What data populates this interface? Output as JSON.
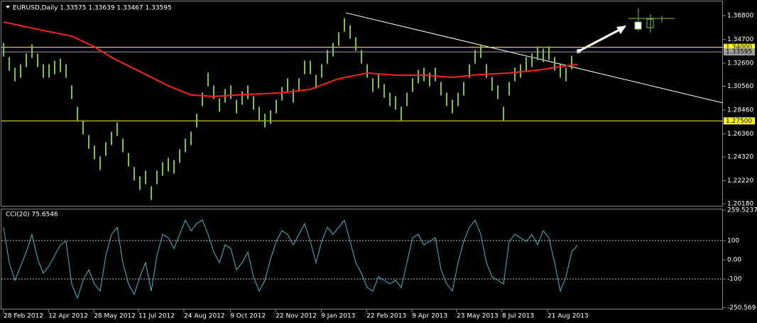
{
  "chart_data": [
    {
      "type": "ohlc",
      "title": "EURUSD,Daily 1.33575 1.33639 1.33467 1.33595",
      "color": "#79c04f",
      "xlim": [
        -0.625,
        126.625
      ],
      "ylim": [
        1.1999,
        1.3787
      ],
      "yticks": [
        {
          "value": 1.368,
          "label": "1.36800"
        },
        {
          "value": 1.347,
          "label": "1.34700"
        },
        {
          "value": 1.326,
          "label": "1.32600"
        },
        {
          "value": 1.3056,
          "label": "1.30560"
        },
        {
          "value": 1.2846,
          "label": "1.28460"
        },
        {
          "value": 1.2636,
          "label": "1.26360"
        },
        {
          "value": 1.2432,
          "label": "1.24320"
        },
        {
          "value": 1.2222,
          "label": "1.22220"
        },
        {
          "value": 1.2018,
          "label": "1.20180"
        }
      ],
      "high": [
        1.3439,
        1.3314,
        1.322,
        1.3251,
        1.3345,
        1.3426,
        1.3345,
        1.3251,
        1.3251,
        1.3282,
        1.3301,
        1.3251,
        1.3063,
        1.2875,
        1.2749,
        1.2624,
        1.253,
        1.2436,
        1.2561,
        1.2655,
        1.2737,
        1.2593,
        1.2467,
        1.2342,
        1.226,
        1.231,
        1.2172,
        1.231,
        1.2386,
        1.2423,
        1.2404,
        1.2499,
        1.2593,
        1.2655,
        1.2812,
        1.3,
        1.3176,
        1.3063,
        1.295,
        1.3031,
        1.3063,
        1.2937,
        1.3013,
        1.3063,
        1.2969,
        1.2875,
        1.2812,
        1.2843,
        1.2937,
        1.305,
        1.3126,
        1.3031,
        1.3126,
        1.3282,
        1.3282,
        1.3157,
        1.3251,
        1.3376,
        1.3439,
        1.3533,
        1.3658,
        1.3596,
        1.3489,
        1.3376,
        1.3251,
        1.3126,
        1.3157,
        1.3075,
        1.3,
        1.2969,
        1.2875,
        1.3,
        1.3126,
        1.3201,
        1.322,
        1.3176,
        1.322,
        1.3094,
        1.3,
        1.2937,
        1.3,
        1.3094,
        1.3251,
        1.3376,
        1.3426,
        1.3251,
        1.3138,
        1.3063,
        1.2875,
        1.3094,
        1.322,
        1.3251,
        1.3314,
        1.3345,
        1.3408,
        1.3389,
        1.3408,
        1.3314,
        1.3251,
        1.322,
        1.3326,
        1.3364
      ],
      "low": [
        1.3319,
        1.3194,
        1.31,
        1.3131,
        1.3225,
        1.3306,
        1.3225,
        1.3131,
        1.3131,
        1.3162,
        1.3181,
        1.3131,
        1.2943,
        1.2755,
        1.2629,
        1.2504,
        1.241,
        1.2316,
        1.2441,
        1.2535,
        1.2617,
        1.2473,
        1.2347,
        1.2222,
        1.214,
        1.219,
        1.2052,
        1.219,
        1.2266,
        1.2303,
        1.2284,
        1.2379,
        1.2473,
        1.2535,
        1.2692,
        1.288,
        1.3056,
        1.2943,
        1.283,
        1.2911,
        1.2943,
        1.2817,
        1.2893,
        1.2943,
        1.2849,
        1.2755,
        1.2692,
        1.2723,
        1.2817,
        1.293,
        1.3006,
        1.2911,
        1.3006,
        1.3162,
        1.3162,
        1.3037,
        1.3131,
        1.3256,
        1.3319,
        1.3413,
        1.3538,
        1.3476,
        1.3369,
        1.3256,
        1.3131,
        1.3006,
        1.3037,
        1.2955,
        1.288,
        1.2849,
        1.2755,
        1.288,
        1.3006,
        1.3081,
        1.31,
        1.3056,
        1.31,
        1.2974,
        1.288,
        1.2817,
        1.288,
        1.2974,
        1.3131,
        1.3256,
        1.3306,
        1.3131,
        1.3018,
        1.2943,
        1.2755,
        1.2974,
        1.31,
        1.3131,
        1.3194,
        1.3225,
        1.3288,
        1.3269,
        1.3288,
        1.3194,
        1.3131,
        1.31,
        1.3206,
        1.3347
      ],
      "ma": {
        "color": "#ff2020",
        "x": [
          0,
          7,
          12,
          16,
          19,
          24,
          29,
          33,
          37,
          43,
          49,
          54,
          59,
          64,
          69,
          74,
          79,
          84,
          89,
          94,
          98,
          101
        ],
        "values": [
          1.3624,
          1.3549,
          1.3499,
          1.3405,
          1.3311,
          1.3186,
          1.306,
          1.2979,
          1.2966,
          1.2985,
          1.2997,
          1.3029,
          1.3123,
          1.3173,
          1.3154,
          1.3154,
          1.3135,
          1.316,
          1.3173,
          1.3198,
          1.3229,
          1.3248
        ]
      },
      "trendline": {
        "color": "#ffffff",
        "x": [
          60.25,
          126.6
        ],
        "values": [
          1.3705,
          1.2909
        ]
      },
      "levels": [
        {
          "value": 1.34,
          "label": "1.34000",
          "color": "#ffff00"
        },
        {
          "value": 1.33595,
          "label": "1.33595",
          "color": "#a0a0a0"
        },
        {
          "value": 1.275,
          "label": "1.27500",
          "color": "#ffff00"
        }
      ]
    },
    {
      "type": "line",
      "title": "CCI(20) 75.6546",
      "color": "#3fb8c8",
      "xlim": [
        -0.625,
        126.625
      ],
      "ylim": [
        -255.6,
        263
      ],
      "yticks": [
        259.5237,
        100,
        {
          "value": 0,
          "label": "0.00"
        },
        -100,
        -250.569
      ],
      "levels": [
        100,
        -100
      ],
      "values": [
        170,
        -15,
        -107,
        -33,
        41,
        133,
        4,
        -70,
        -33,
        22,
        78,
        96,
        -126,
        -200,
        -107,
        -52,
        -126,
        -163,
        22,
        133,
        170,
        -15,
        -126,
        -181,
        -89,
        -15,
        -163,
        22,
        133,
        115,
        59,
        133,
        207,
        152,
        189,
        207,
        133,
        41,
        -15,
        78,
        59,
        -52,
        -15,
        41,
        -89,
        -163,
        -107,
        4,
        96,
        152,
        133,
        78,
        133,
        189,
        96,
        -15,
        96,
        170,
        133,
        170,
        207,
        96,
        -15,
        -70,
        -144,
        -163,
        -89,
        -107,
        -126,
        -107,
        -144,
        -15,
        115,
        133,
        78,
        96,
        115,
        -52,
        -126,
        -163,
        -15,
        96,
        170,
        207,
        133,
        -15,
        -89,
        -107,
        -126,
        96,
        133,
        115,
        96,
        133,
        78,
        152,
        115,
        -15,
        -163,
        -89,
        41,
        75.6546
      ],
      "xticks": [
        {
          "value": 0,
          "label": "28 Feb 2012"
        },
        {
          "value": 7.9,
          "label": "12 Apr 2012"
        },
        {
          "value": 15.9,
          "label": "28 May 2012"
        },
        {
          "value": 23.75,
          "label": "11 Jul 2012"
        },
        {
          "value": 31.75,
          "label": "24 Aug 2012"
        },
        {
          "value": 39.9,
          "label": "9 Oct 2012"
        },
        {
          "value": 47.9,
          "label": "22 Nov 2012"
        },
        {
          "value": 55.9,
          "label": "9 Jan 2013"
        },
        {
          "value": 63.9,
          "label": "22 Feb 2013"
        },
        {
          "value": 71.9,
          "label": "9 Apr 2013"
        },
        {
          "value": 79.75,
          "label": "23 May 2013"
        },
        {
          "value": 87.75,
          "label": "8 Jul 2013"
        },
        {
          "value": 95.75,
          "label": "21 Aug 2013"
        }
      ]
    }
  ]
}
